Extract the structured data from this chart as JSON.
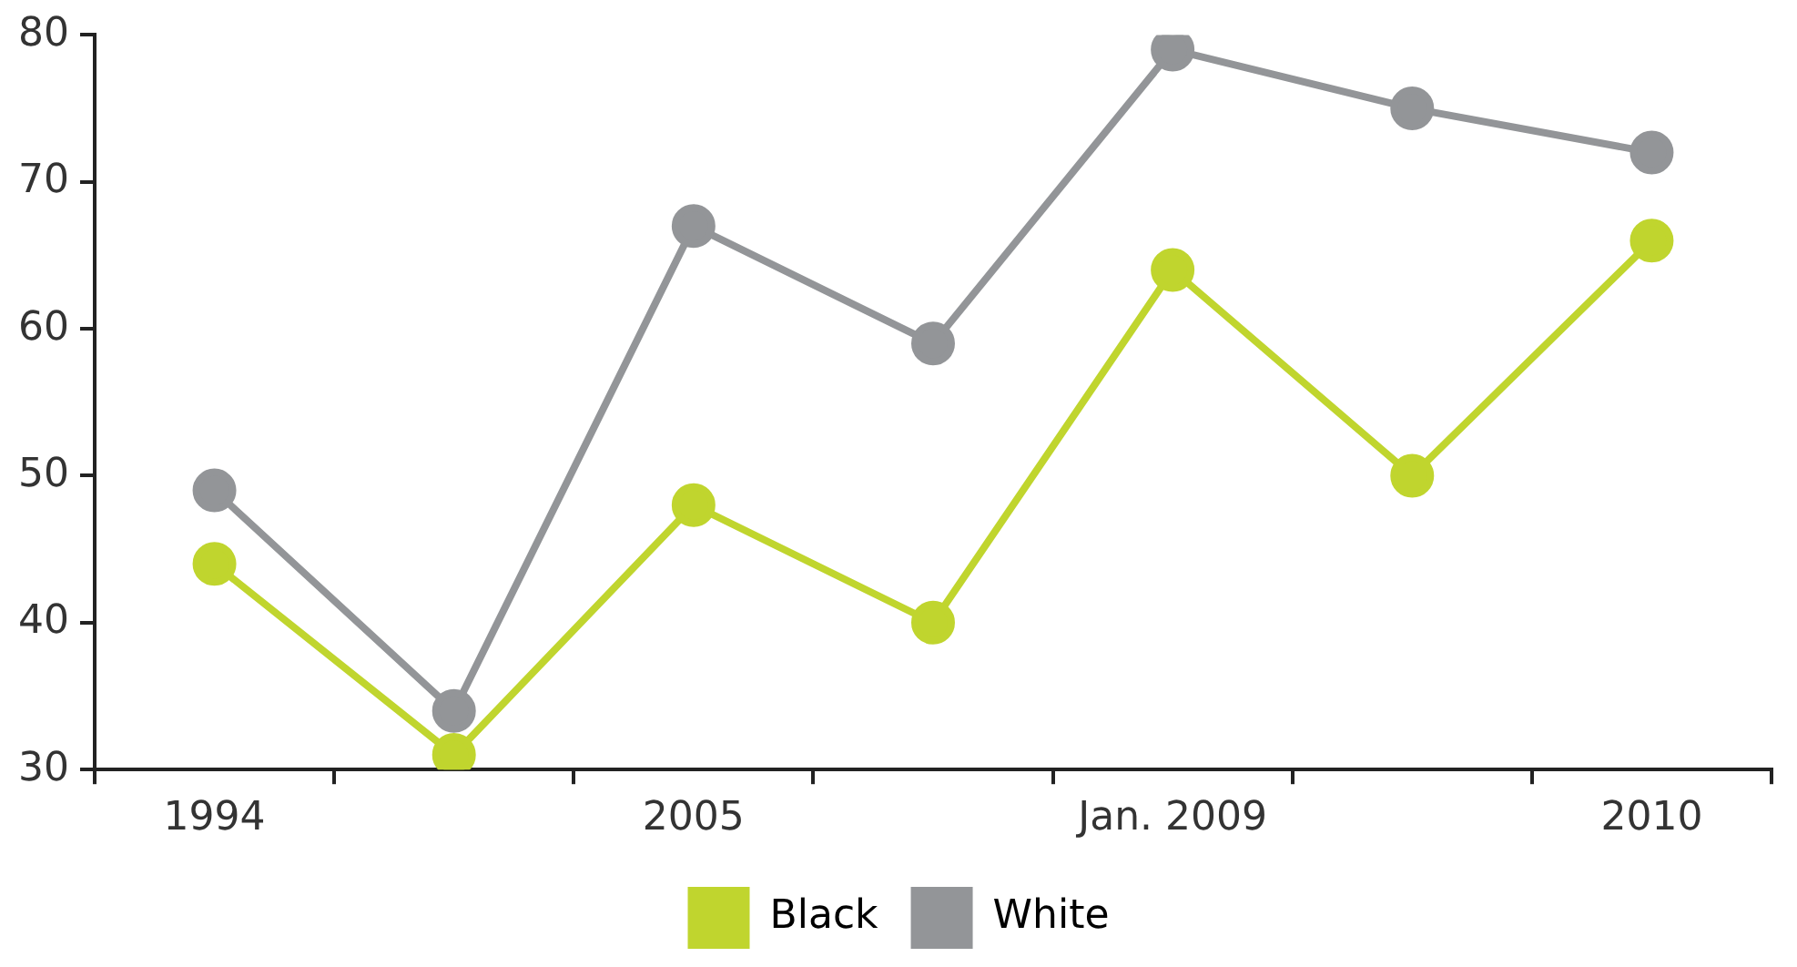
{
  "chart_data": {
    "type": "line",
    "categories": [
      "1994",
      null,
      "2005",
      null,
      "Jan. 2009",
      null,
      "2010"
    ],
    "series": [
      {
        "name": "Black",
        "color": "#c0d52e",
        "values": [
          44,
          31,
          48,
          40,
          64,
          50,
          66
        ]
      },
      {
        "name": "White",
        "color": "#939598",
        "values": [
          49,
          34,
          67,
          59,
          79,
          75,
          72
        ]
      }
    ],
    "ylim": [
      30,
      80
    ],
    "yticks": [
      30,
      40,
      50,
      60,
      70,
      80
    ],
    "grid": false,
    "legend": "bottom",
    "marker": "circle",
    "line_style": "solid"
  }
}
